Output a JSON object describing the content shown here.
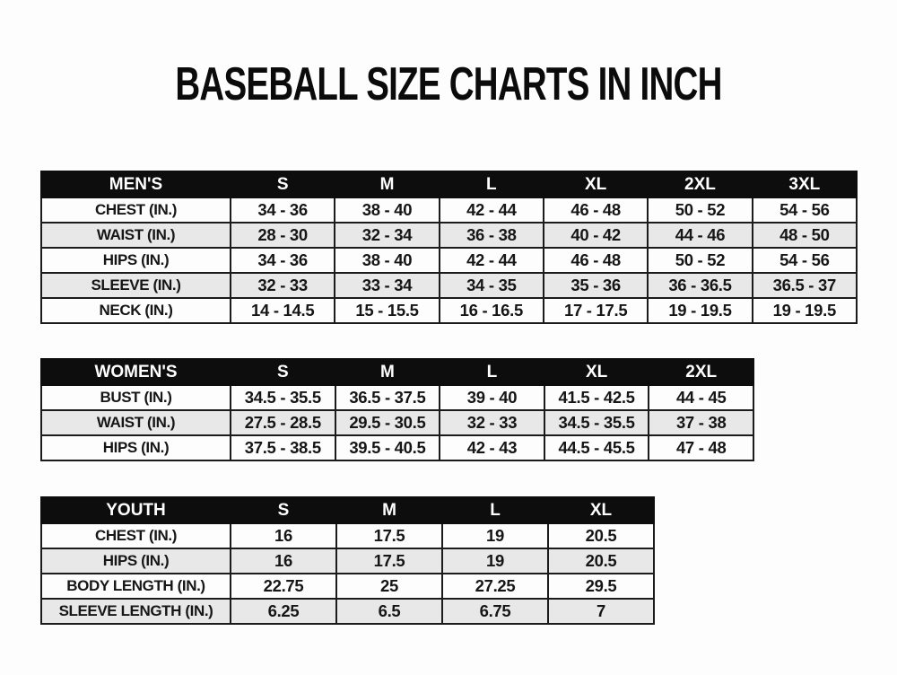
{
  "page": {
    "title": "BASEBALL SIZE CHARTS IN INCH"
  },
  "colors": {
    "header_bg": "#0d0d0d",
    "header_text": "#ffffff",
    "row_bg": "#fdfdfd",
    "row_alt_bg": "#e8e8e8",
    "border": "#1b1b1b",
    "text": "#161616"
  },
  "tables": [
    {
      "name": "mens",
      "group_label": "MEN'S",
      "sizes": [
        "S",
        "M",
        "L",
        "XL",
        "2XL",
        "3XL"
      ],
      "rows": [
        {
          "label": "CHEST (IN.)",
          "values": [
            "34 - 36",
            "38 - 40",
            "42 - 44",
            "46 - 48",
            "50 - 52",
            "54 - 56"
          ]
        },
        {
          "label": "WAIST (IN.)",
          "values": [
            "28 - 30",
            "32 - 34",
            "36 - 38",
            "40 - 42",
            "44 - 46",
            "48 - 50"
          ]
        },
        {
          "label": "HIPS (IN.)",
          "values": [
            "34 - 36",
            "38 - 40",
            "42 - 44",
            "46 - 48",
            "50 - 52",
            "54 - 56"
          ]
        },
        {
          "label": "SLEEVE (IN.)",
          "values": [
            "32 - 33",
            "33 - 34",
            "34 - 35",
            "35 - 36",
            "36 - 36.5",
            "36.5 - 37"
          ]
        },
        {
          "label": "NECK (IN.)",
          "values": [
            "14 - 14.5",
            "15 - 15.5",
            "16 - 16.5",
            "17 - 17.5",
            "19 - 19.5",
            "19 - 19.5"
          ]
        }
      ]
    },
    {
      "name": "womens",
      "group_label": "WOMEN'S",
      "sizes": [
        "S",
        "M",
        "L",
        "XL",
        "2XL"
      ],
      "rows": [
        {
          "label": "BUST (IN.)",
          "values": [
            "34.5 - 35.5",
            "36.5 - 37.5",
            "39 - 40",
            "41.5 - 42.5",
            "44 - 45"
          ]
        },
        {
          "label": "WAIST (IN.)",
          "values": [
            "27.5 - 28.5",
            "29.5 - 30.5",
            "32 - 33",
            "34.5 - 35.5",
            "37 - 38"
          ]
        },
        {
          "label": "HIPS (IN.)",
          "values": [
            "37.5 - 38.5",
            "39.5 - 40.5",
            "42 - 43",
            "44.5 - 45.5",
            "47 - 48"
          ]
        }
      ]
    },
    {
      "name": "youth",
      "group_label": "YOUTH",
      "sizes": [
        "S",
        "M",
        "L",
        "XL"
      ],
      "rows": [
        {
          "label": "CHEST (IN.)",
          "values": [
            "16",
            "17.5",
            "19",
            "20.5"
          ]
        },
        {
          "label": "HIPS (IN.)",
          "values": [
            "16",
            "17.5",
            "19",
            "20.5"
          ]
        },
        {
          "label": "BODY LENGTH (IN.)",
          "values": [
            "22.75",
            "25",
            "27.25",
            "29.5"
          ]
        },
        {
          "label": "SLEEVE LENGTH (IN.)",
          "values": [
            "6.25",
            "6.5",
            "6.75",
            "7"
          ]
        }
      ]
    }
  ]
}
